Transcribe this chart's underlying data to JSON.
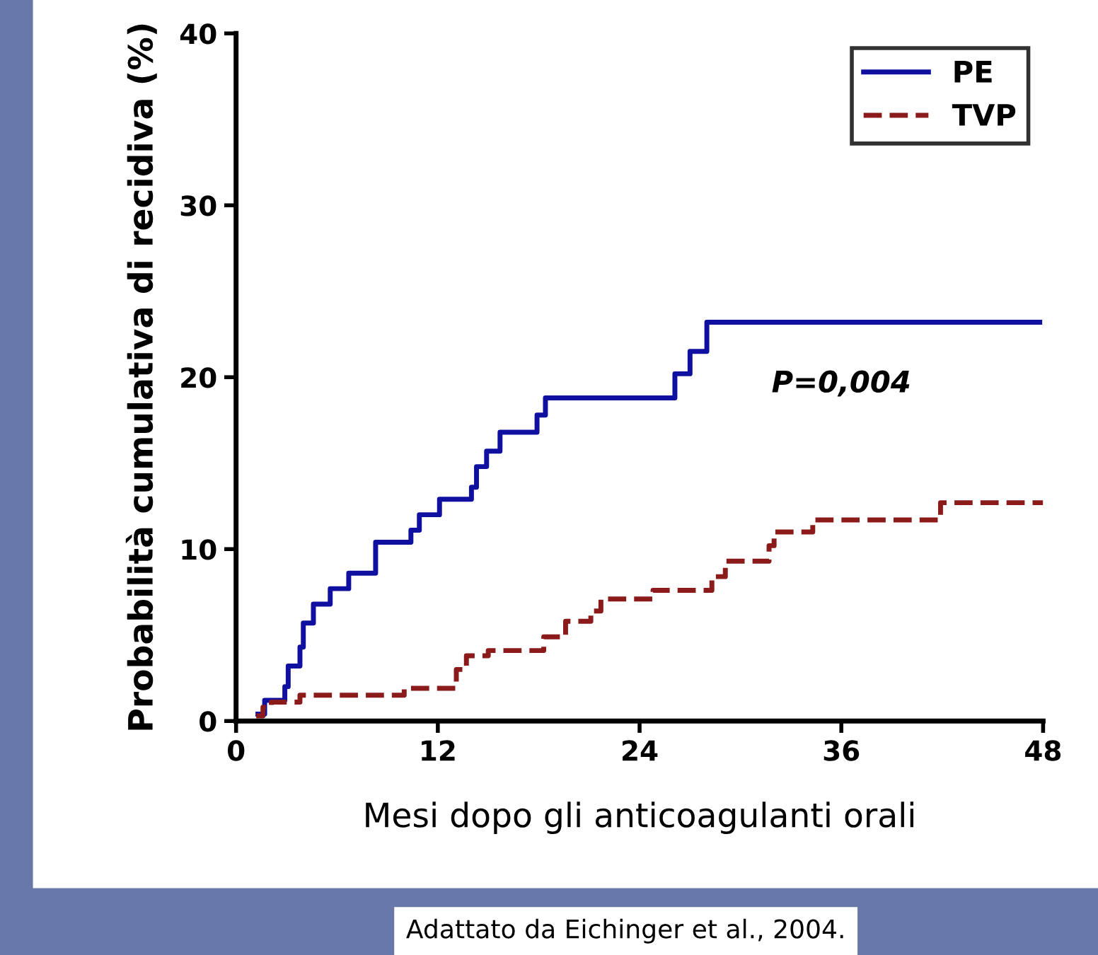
{
  "chart_data": {
    "type": "step",
    "xlabel": "Mesi dopo gli anticoagulanti orali",
    "ylabel": "Probabilità cumulativa di recidiva (%)",
    "xlim": [
      0,
      48
    ],
    "xticks": [
      0,
      12,
      24,
      36,
      48
    ],
    "ylim": [
      0,
      40
    ],
    "yticks": [
      0,
      10,
      20,
      30,
      40
    ],
    "grid": false,
    "legend": "top right",
    "annotations": [
      "P=0,004",
      "Adattato da Eichinger et al., 2004."
    ],
    "series": [
      {
        "name": "PE",
        "color": "#1010a0",
        "line_style": "solid",
        "x": [
          1.3,
          1.7,
          2.9,
          3.1,
          3.8,
          4.0,
          4.6,
          5.6,
          6.7,
          8.3,
          10.4,
          10.9,
          12.1,
          14.0,
          14.3,
          14.9,
          15.7,
          17.9,
          18.4,
          26.1,
          27.0,
          28.0,
          47.8
        ],
        "values": [
          0.4,
          1.2,
          2.0,
          3.2,
          4.3,
          5.7,
          6.8,
          7.7,
          8.6,
          10.4,
          11.1,
          12.0,
          12.9,
          13.6,
          14.8,
          15.7,
          16.8,
          17.8,
          18.8,
          20.2,
          21.5,
          23.2,
          23.2
        ]
      },
      {
        "name": "TVP",
        "color": "#8b1a1a",
        "line_style": "dashed",
        "x": [
          1.2,
          1.6,
          2.1,
          3.8,
          10.0,
          13.1,
          13.7,
          15.0,
          18.3,
          19.6,
          21.1,
          21.7,
          24.8,
          28.3,
          29.1,
          31.7,
          32.0,
          34.3,
          41.9,
          48.0
        ],
        "values": [
          0.3,
          0.8,
          1.1,
          1.5,
          1.9,
          3.0,
          3.8,
          4.1,
          4.9,
          5.8,
          6.4,
          7.1,
          7.6,
          8.4,
          9.3,
          10.2,
          11.0,
          11.7,
          12.7,
          12.7
        ]
      }
    ]
  }
}
